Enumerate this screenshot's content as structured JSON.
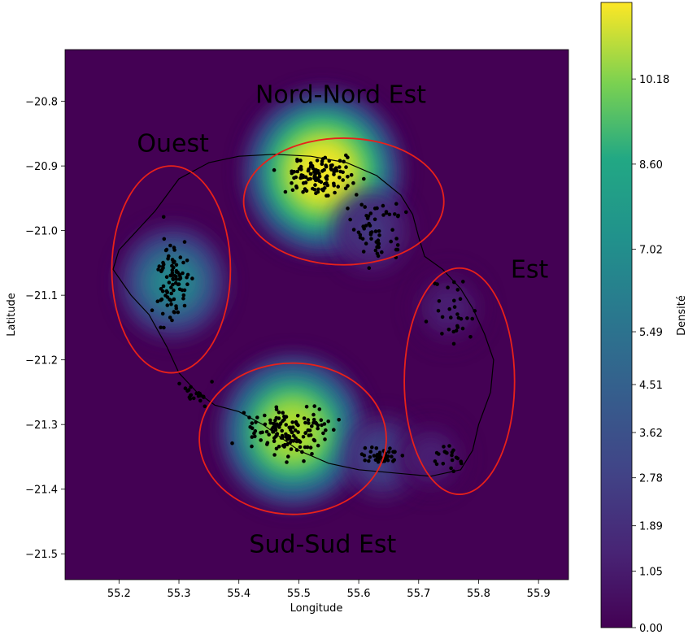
{
  "chart_data": {
    "type": "heatmap",
    "title": "",
    "xlabel": "Longitude",
    "ylabel": "Latitude",
    "xlim": [
      55.11,
      55.95
    ],
    "ylim": [
      -21.54,
      -20.72
    ],
    "xticks": [
      55.2,
      55.3,
      55.4,
      55.5,
      55.6,
      55.7,
      55.8,
      55.9
    ],
    "yticks": [
      -20.8,
      -20.9,
      -21.0,
      -21.1,
      -21.2,
      -21.3,
      -21.4,
      -21.5
    ],
    "colorbar": {
      "label": "Densité",
      "min": 0.0,
      "max": 11.6,
      "ticks": [
        0.0,
        1.05,
        1.89,
        2.78,
        3.62,
        4.51,
        5.49,
        7.02,
        8.6,
        10.18
      ],
      "tick_labels": [
        "0.00",
        "1.05",
        "1.89",
        "2.78",
        "3.62",
        "4.51",
        "5.49",
        "7.02",
        "8.60",
        "10.18"
      ],
      "colormap": "viridis"
    },
    "density_peaks": [
      {
        "lon": 55.54,
        "lat": -20.91,
        "value": 11.5
      },
      {
        "lon": 55.49,
        "lat": -21.31,
        "value": 10.0
      },
      {
        "lon": 55.29,
        "lat": -21.08,
        "value": 5.5
      },
      {
        "lon": 55.62,
        "lat": -21.0,
        "value": 2.6
      },
      {
        "lon": 55.64,
        "lat": -21.35,
        "value": 2.8
      },
      {
        "lon": 55.75,
        "lat": -21.12,
        "value": 1.6
      },
      {
        "lon": 55.72,
        "lat": -21.35,
        "value": 1.2
      }
    ],
    "regions": [
      {
        "name": "Nord-Nord Est",
        "label_lon": 55.57,
        "label_lat": -20.79,
        "center_lon": 55.575,
        "center_lat": -20.955,
        "radius_lon": 0.167,
        "radius_lat": 0.098
      },
      {
        "name": "Ouest",
        "label_lon": 55.29,
        "label_lat": -20.865,
        "center_lon": 55.287,
        "center_lat": -21.06,
        "radius_lon": 0.099,
        "radius_lat": 0.16
      },
      {
        "name": "Est",
        "label_lon": 55.885,
        "label_lat": -21.06,
        "center_lon": 55.768,
        "center_lat": -21.233,
        "radius_lon": 0.092,
        "radius_lat": 0.175
      },
      {
        "name": "Sud-Sud Est",
        "label_lon": 55.54,
        "label_lat": -21.485,
        "center_lon": 55.49,
        "center_lat": -21.322,
        "radius_lon": 0.156,
        "radius_lat": 0.117
      }
    ],
    "coastline": [
      [
        55.22,
        -21.01
      ],
      [
        55.26,
        -20.97
      ],
      [
        55.3,
        -20.92
      ],
      [
        55.35,
        -20.895
      ],
      [
        55.4,
        -20.885
      ],
      [
        55.46,
        -20.882
      ],
      [
        55.52,
        -20.885
      ],
      [
        55.58,
        -20.895
      ],
      [
        55.63,
        -20.915
      ],
      [
        55.67,
        -20.945
      ],
      [
        55.69,
        -20.975
      ],
      [
        55.7,
        -21.01
      ],
      [
        55.71,
        -21.04
      ],
      [
        55.74,
        -21.06
      ],
      [
        55.77,
        -21.09
      ],
      [
        55.79,
        -21.12
      ],
      [
        55.81,
        -21.16
      ],
      [
        55.825,
        -21.2
      ],
      [
        55.82,
        -21.25
      ],
      [
        55.8,
        -21.3
      ],
      [
        55.79,
        -21.34
      ],
      [
        55.77,
        -21.37
      ],
      [
        55.72,
        -21.38
      ],
      [
        55.66,
        -21.375
      ],
      [
        55.6,
        -21.37
      ],
      [
        55.55,
        -21.36
      ],
      [
        55.5,
        -21.34
      ],
      [
        55.44,
        -21.3
      ],
      [
        55.4,
        -21.28
      ],
      [
        55.36,
        -21.27
      ],
      [
        55.33,
        -21.25
      ],
      [
        55.3,
        -21.22
      ],
      [
        55.28,
        -21.18
      ],
      [
        55.25,
        -21.13
      ],
      [
        55.22,
        -21.1
      ],
      [
        55.19,
        -21.06
      ],
      [
        55.2,
        -21.03
      ],
      [
        55.22,
        -21.01
      ]
    ],
    "points_count": 520
  }
}
